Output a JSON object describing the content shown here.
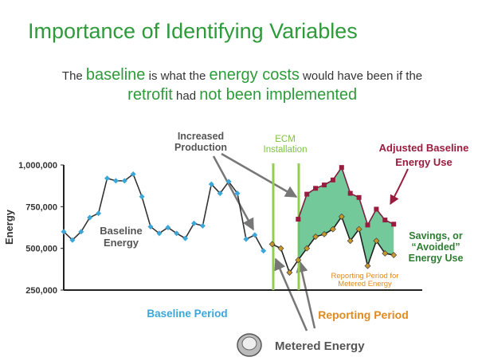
{
  "title": "Importance of Identifying Variables",
  "subtitle": {
    "line1": [
      "The ",
      "baseline",
      " is what the ",
      "energy costs",
      " would have been if the"
    ],
    "line2": [
      "retrofit",
      " had ",
      "not been implemented"
    ]
  },
  "chart_data": {
    "type": "line",
    "y_label": "Energy",
    "ylim": [
      250000,
      1000000
    ],
    "yticks": [
      {
        "value": 250000,
        "label": "250,000"
      },
      {
        "value": 500000,
        "label": "500,000"
      },
      {
        "value": 750000,
        "label": "750,000"
      },
      {
        "value": 1000000,
        "label": "1,000,000"
      }
    ],
    "ecm_label": [
      "ECM",
      "Installation"
    ],
    "annotations": {
      "increased_production": [
        "Increased",
        "Production"
      ],
      "adjusted_baseline": [
        "Adjusted Baseline",
        "Energy Use"
      ],
      "baseline_energy": [
        "Baseline",
        "Energy"
      ],
      "savings": [
        "Savings, or",
        "“Avoided”",
        "Energy Use"
      ],
      "reporting_metered": [
        "Reporting Period for",
        "Metered Energy"
      ],
      "baseline_period": "Baseline Period",
      "reporting_period": "Reporting Period",
      "metered_energy": "Metered Energy"
    },
    "series": [
      {
        "name": "Baseline Energy",
        "color": "#3aa7d8",
        "values": [
          600000,
          550000,
          600000,
          685000,
          710000,
          920000,
          905000,
          905000,
          945000,
          810000,
          630000,
          590000,
          625000,
          590000,
          560000,
          650000,
          635000,
          885000,
          830000,
          900000,
          830000,
          555000,
          580000,
          485000,
          null,
          null,
          null,
          null,
          null,
          null,
          null,
          null,
          null,
          null,
          null,
          null,
          null,
          null,
          null
        ]
      },
      {
        "name": "Metered Energy",
        "color": "#c9962a",
        "values": [
          null,
          null,
          null,
          null,
          null,
          null,
          null,
          null,
          null,
          null,
          null,
          null,
          null,
          null,
          null,
          null,
          null,
          null,
          null,
          null,
          null,
          null,
          null,
          null,
          525000,
          500000,
          355000,
          430000,
          500000,
          570000,
          585000,
          615000,
          690000,
          545000,
          615000,
          395000,
          545000,
          470000,
          460000
        ]
      },
      {
        "name": "Adjusted Baseline Energy Use",
        "color": "#9b1b3e",
        "values": [
          null,
          null,
          null,
          null,
          null,
          null,
          null,
          null,
          null,
          null,
          null,
          null,
          null,
          null,
          null,
          null,
          null,
          null,
          null,
          null,
          null,
          null,
          null,
          null,
          null,
          null,
          null,
          675000,
          825000,
          860000,
          880000,
          910000,
          985000,
          830000,
          805000,
          640000,
          735000,
          670000,
          645000
        ]
      }
    ]
  }
}
